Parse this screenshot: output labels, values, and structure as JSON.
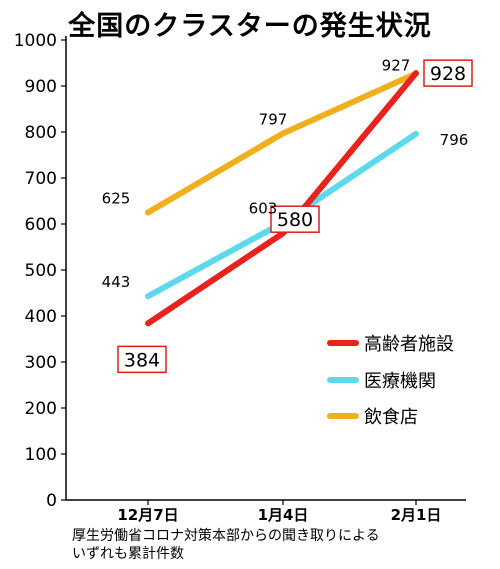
{
  "chart_data": {
    "type": "line",
    "title": "全国のクラスターの発生状況",
    "categories": [
      "12月7日",
      "1月4日",
      "2月1日"
    ],
    "ylim": [
      0,
      1000
    ],
    "yticks": [
      0,
      100,
      200,
      300,
      400,
      500,
      600,
      700,
      800,
      900,
      1000
    ],
    "series": [
      {
        "name": "高齢者施設",
        "values": [
          384,
          580,
          928
        ],
        "color": "#e8221c",
        "boxed_labels": true
      },
      {
        "name": "医療機関",
        "values": [
          443,
          603,
          796
        ],
        "color": "#5ed8ec",
        "boxed_labels": false
      },
      {
        "name": "飲食店",
        "values": [
          625,
          797,
          927
        ],
        "color": "#f0b01e",
        "boxed_labels": false
      }
    ],
    "legend_position": "right",
    "grid": false
  },
  "source_lines": [
    "厚生労働省コロナ対策本部からの聞き取りによる",
    "いずれも累計件数"
  ]
}
